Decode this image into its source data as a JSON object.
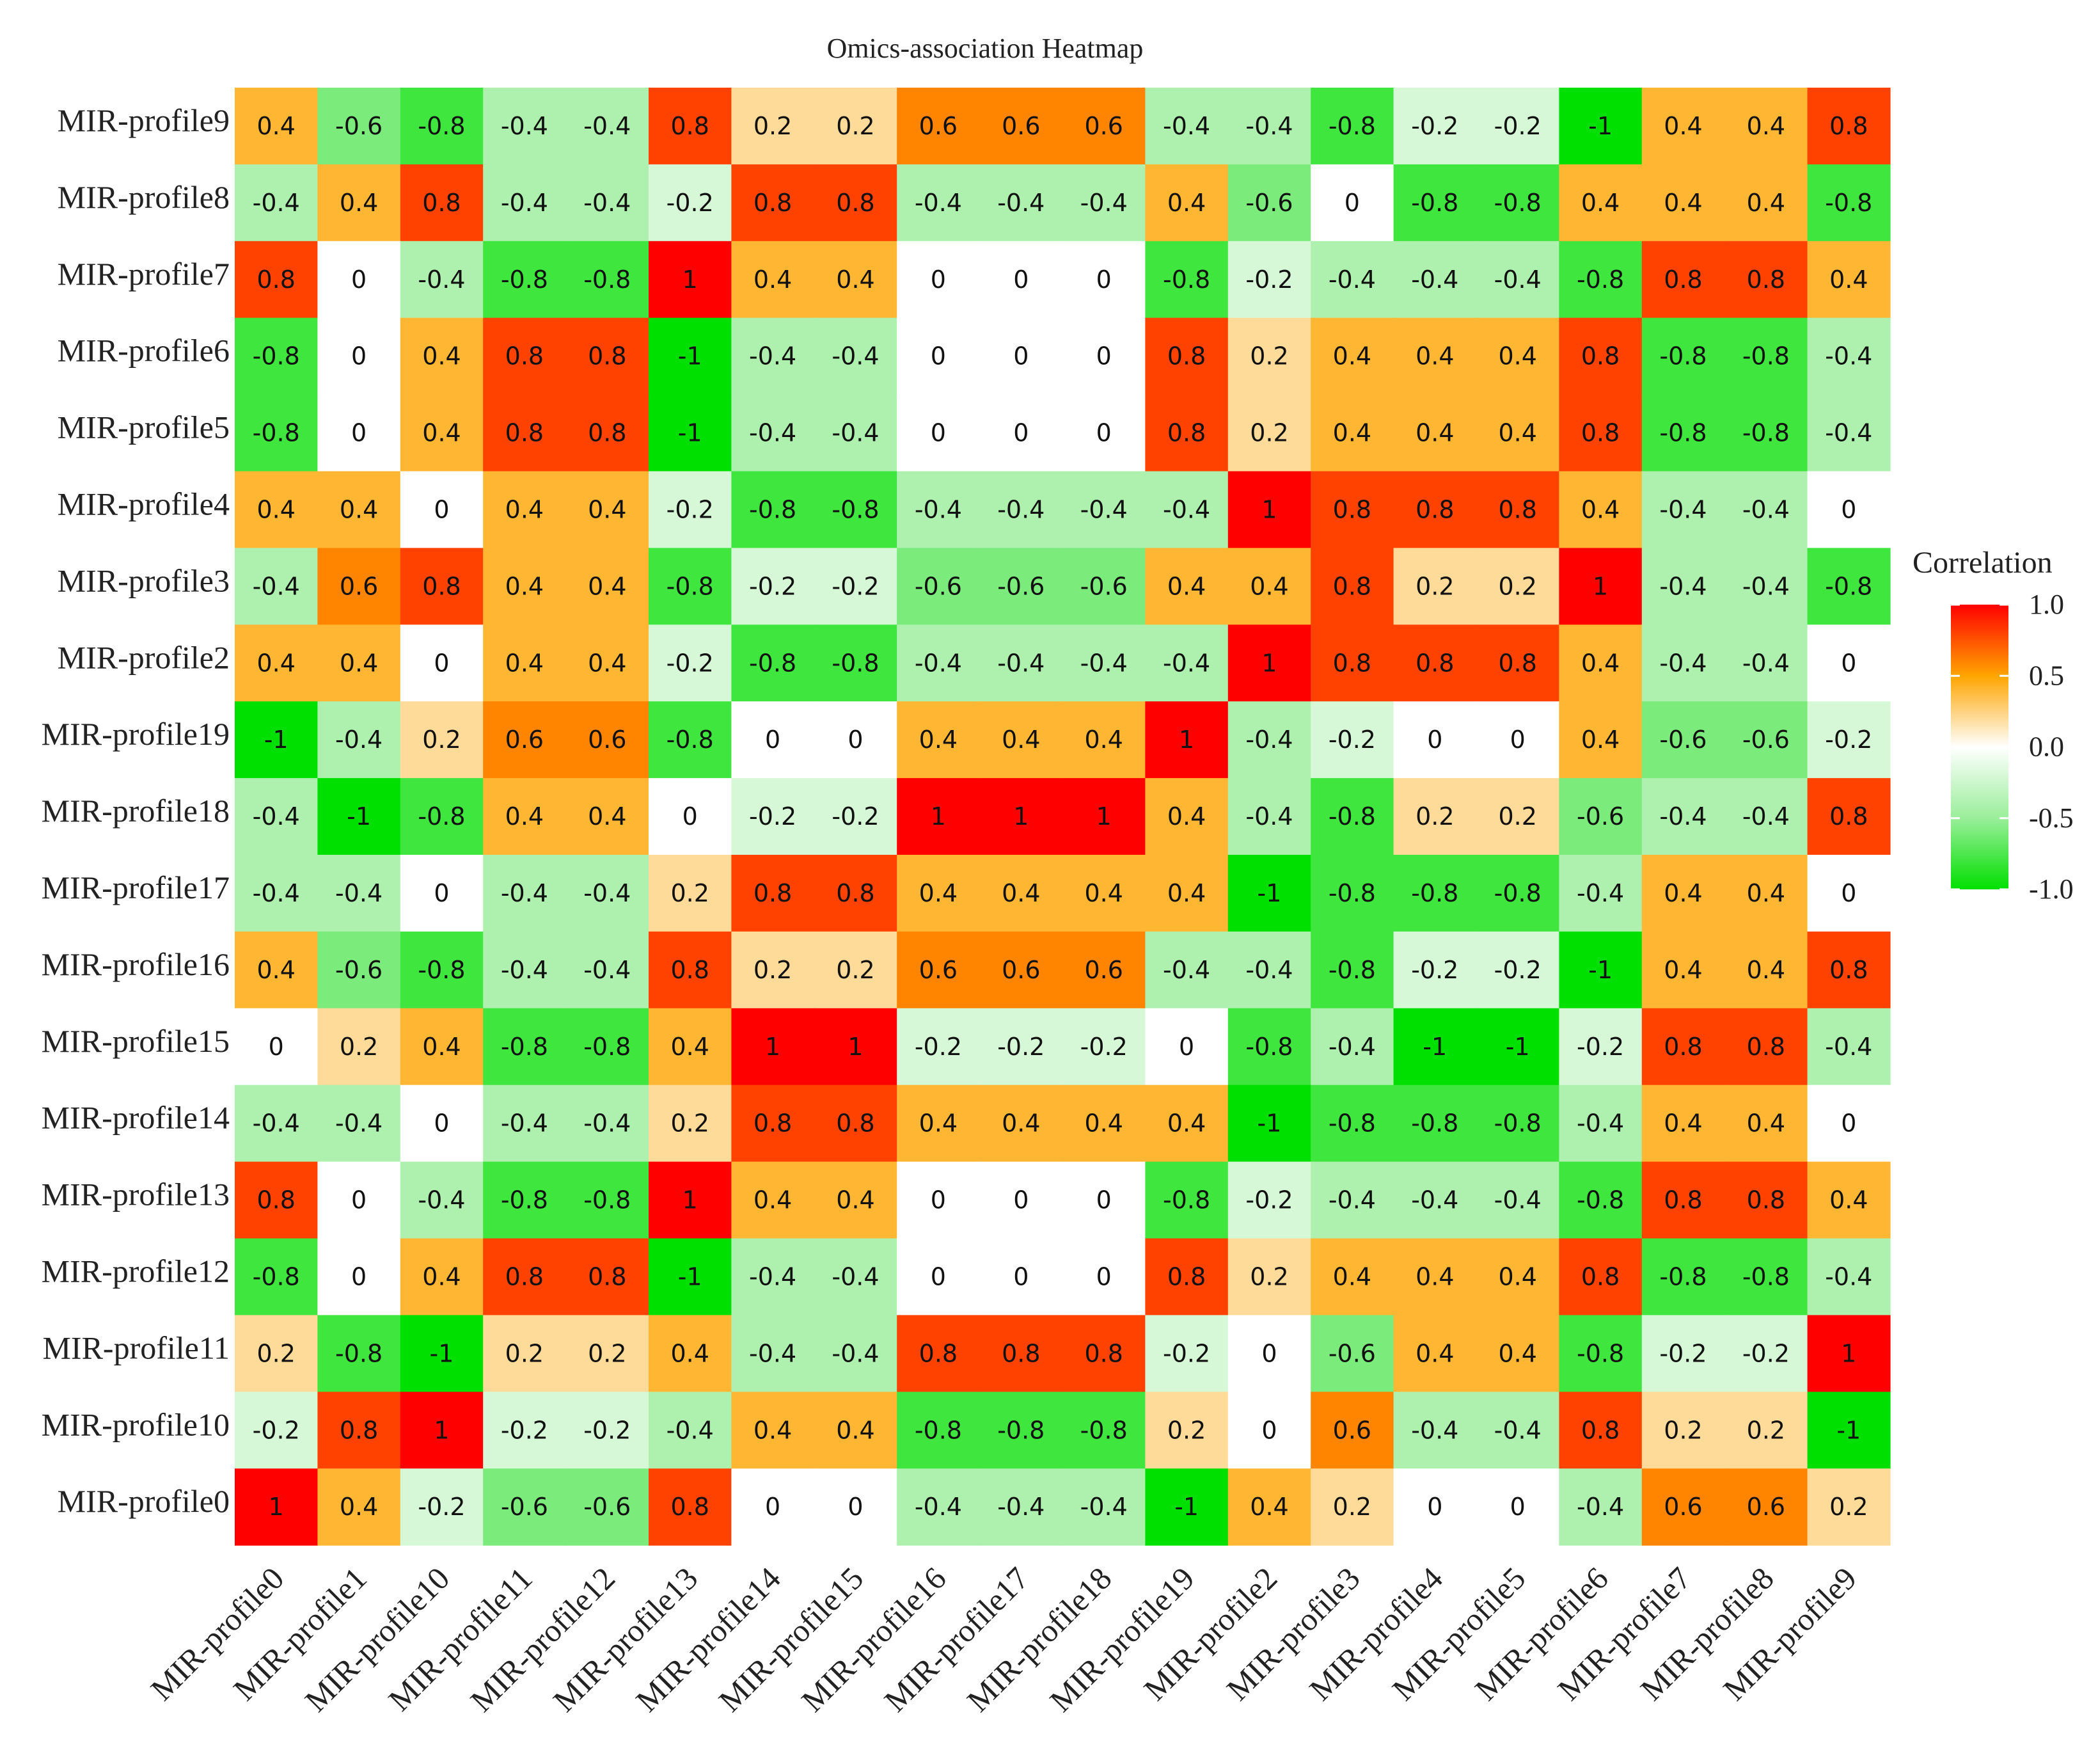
{
  "chart_data": {
    "type": "heatmap",
    "title": "Omics-association Heatmap",
    "rows": [
      "MIR-profile9",
      "MIR-profile8",
      "MIR-profile7",
      "MIR-profile6",
      "MIR-profile5",
      "MIR-profile4",
      "MIR-profile3",
      "MIR-profile2",
      "MIR-profile19",
      "MIR-profile18",
      "MIR-profile17",
      "MIR-profile16",
      "MIR-profile15",
      "MIR-profile14",
      "MIR-profile13",
      "MIR-profile12",
      "MIR-profile11",
      "MIR-profile10",
      "MIR-profile0"
    ],
    "columns": [
      "MIR-profile0",
      "MIR-profile1",
      "MIR-profile10",
      "MIR-profile11",
      "MIR-profile12",
      "MIR-profile13",
      "MIR-profile14",
      "MIR-profile15",
      "MIR-profile16",
      "MIR-profile17",
      "MIR-profile18",
      "MIR-profile19",
      "MIR-profile2",
      "MIR-profile3",
      "MIR-profile4",
      "MIR-profile5",
      "MIR-profile6",
      "MIR-profile7",
      "MIR-profile8",
      "MIR-profile9"
    ],
    "values": [
      [
        0.4,
        -0.6,
        -0.8,
        -0.4,
        -0.4,
        0.8,
        0.2,
        0.2,
        0.6,
        0.6,
        0.6,
        -0.4,
        -0.4,
        -0.8,
        -0.2,
        -0.2,
        -1,
        0.4,
        0.4,
        0.8
      ],
      [
        -0.4,
        0.4,
        0.8,
        -0.4,
        -0.4,
        -0.2,
        0.8,
        0.8,
        -0.4,
        -0.4,
        -0.4,
        0.4,
        -0.6,
        0,
        -0.8,
        -0.8,
        0.4,
        0.4,
        0.4,
        -0.8
      ],
      [
        0.8,
        0,
        -0.4,
        -0.8,
        -0.8,
        1,
        0.4,
        0.4,
        0,
        0,
        0,
        -0.8,
        -0.2,
        -0.4,
        -0.4,
        -0.4,
        -0.8,
        0.8,
        0.8,
        0.4
      ],
      [
        -0.8,
        0,
        0.4,
        0.8,
        0.8,
        -1,
        -0.4,
        -0.4,
        0,
        0,
        0,
        0.8,
        0.2,
        0.4,
        0.4,
        0.4,
        0.8,
        -0.8,
        -0.8,
        -0.4
      ],
      [
        -0.8,
        0,
        0.4,
        0.8,
        0.8,
        -1,
        -0.4,
        -0.4,
        0,
        0,
        0,
        0.8,
        0.2,
        0.4,
        0.4,
        0.4,
        0.8,
        -0.8,
        -0.8,
        -0.4
      ],
      [
        0.4,
        0.4,
        0,
        0.4,
        0.4,
        -0.2,
        -0.8,
        -0.8,
        -0.4,
        -0.4,
        -0.4,
        -0.4,
        1,
        0.8,
        0.8,
        0.8,
        0.4,
        -0.4,
        -0.4,
        0
      ],
      [
        -0.4,
        0.6,
        0.8,
        0.4,
        0.4,
        -0.8,
        -0.2,
        -0.2,
        -0.6,
        -0.6,
        -0.6,
        0.4,
        0.4,
        0.8,
        0.2,
        0.2,
        1,
        -0.4,
        -0.4,
        -0.8
      ],
      [
        0.4,
        0.4,
        0,
        0.4,
        0.4,
        -0.2,
        -0.8,
        -0.8,
        -0.4,
        -0.4,
        -0.4,
        -0.4,
        1,
        0.8,
        0.8,
        0.8,
        0.4,
        -0.4,
        -0.4,
        0
      ],
      [
        -1,
        -0.4,
        0.2,
        0.6,
        0.6,
        -0.8,
        0,
        0,
        0.4,
        0.4,
        0.4,
        1,
        -0.4,
        -0.2,
        0,
        0,
        0.4,
        -0.6,
        -0.6,
        -0.2
      ],
      [
        -0.4,
        -1,
        -0.8,
        0.4,
        0.4,
        0,
        -0.2,
        -0.2,
        1,
        1,
        1,
        0.4,
        -0.4,
        -0.8,
        0.2,
        0.2,
        -0.6,
        -0.4,
        -0.4,
        0.8
      ],
      [
        -0.4,
        -0.4,
        0,
        -0.4,
        -0.4,
        0.2,
        0.8,
        0.8,
        0.4,
        0.4,
        0.4,
        0.4,
        -1,
        -0.8,
        -0.8,
        -0.8,
        -0.4,
        0.4,
        0.4,
        0
      ],
      [
        0.4,
        -0.6,
        -0.8,
        -0.4,
        -0.4,
        0.8,
        0.2,
        0.2,
        0.6,
        0.6,
        0.6,
        -0.4,
        -0.4,
        -0.8,
        -0.2,
        -0.2,
        -1,
        0.4,
        0.4,
        0.8
      ],
      [
        0,
        0.2,
        0.4,
        -0.8,
        -0.8,
        0.4,
        1,
        1,
        -0.2,
        -0.2,
        -0.2,
        0,
        -0.8,
        -0.4,
        -1,
        -1,
        -0.2,
        0.8,
        0.8,
        -0.4
      ],
      [
        -0.4,
        -0.4,
        0,
        -0.4,
        -0.4,
        0.2,
        0.8,
        0.8,
        0.4,
        0.4,
        0.4,
        0.4,
        -1,
        -0.8,
        -0.8,
        -0.8,
        -0.4,
        0.4,
        0.4,
        0
      ],
      [
        0.8,
        0,
        -0.4,
        -0.8,
        -0.8,
        1,
        0.4,
        0.4,
        0,
        0,
        0,
        -0.8,
        -0.2,
        -0.4,
        -0.4,
        -0.4,
        -0.8,
        0.8,
        0.8,
        0.4
      ],
      [
        -0.8,
        0,
        0.4,
        0.8,
        0.8,
        -1,
        -0.4,
        -0.4,
        0,
        0,
        0,
        0.8,
        0.2,
        0.4,
        0.4,
        0.4,
        0.8,
        -0.8,
        -0.8,
        -0.4
      ],
      [
        0.2,
        -0.8,
        -1,
        0.2,
        0.2,
        0.4,
        -0.4,
        -0.4,
        0.8,
        0.8,
        0.8,
        -0.2,
        0,
        -0.6,
        0.4,
        0.4,
        -0.8,
        -0.2,
        -0.2,
        1
      ],
      [
        -0.2,
        0.8,
        1,
        -0.2,
        -0.2,
        -0.4,
        0.4,
        0.4,
        -0.8,
        -0.8,
        -0.8,
        0.2,
        0,
        0.6,
        -0.4,
        -0.4,
        0.8,
        0.2,
        0.2,
        -1
      ],
      [
        1,
        0.4,
        -0.2,
        -0.6,
        -0.6,
        0.8,
        0,
        0,
        -0.4,
        -0.4,
        -0.4,
        -1,
        0.4,
        0.2,
        0,
        0,
        -0.4,
        0.6,
        0.6,
        0.2
      ]
    ],
    "legend": {
      "title": "Correlation",
      "ticks": [
        1.0,
        0.5,
        0.0,
        -0.5,
        -1.0
      ],
      "tick_labels": [
        "1.0",
        "0.5",
        "0.0",
        "-0.5",
        "-1.0"
      ],
      "placement": "right"
    },
    "color_scale": {
      "low": "#00e000",
      "mid": "#ffffff",
      "high": "#ff0000",
      "mid_high": "#ffa500",
      "range": [
        -1,
        1
      ]
    }
  }
}
